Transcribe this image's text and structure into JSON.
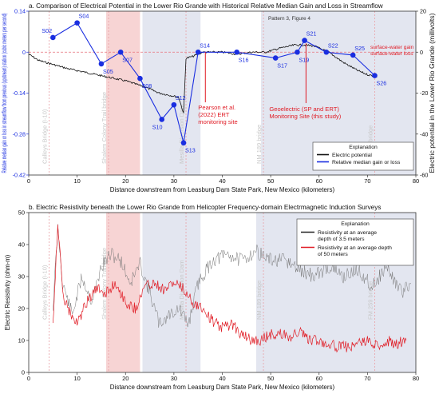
{
  "chart_data": [
    {
      "type": "line",
      "title": "a. Comparison of Electrical Potential in the Lower Rio Grande with Historical Relative Median Gain and Loss in Streamflow",
      "xlabel": "Distance downstream from Leasburg Dam State Park, New Mexico (kilometers)",
      "ylabel_left": "Relative median gain  or loss in streamflow from previous (upstream) station (cubic meters per second)",
      "ylabel_right": "Electric potential in the Lower Rio Grande (millivolts)",
      "xlim": [
        0,
        80
      ],
      "ylim": [
        -0.42,
        0.14
      ],
      "ylim_right": [
        -60,
        20
      ],
      "x_ticks": [
        0,
        10,
        20,
        30,
        40,
        50,
        60,
        70,
        80
      ],
      "y_ticks": [
        0.14,
        0,
        -0.14,
        -0.28,
        -0.42
      ],
      "y_tick_labels": [
        "0.14",
        "0",
        "-0.14",
        "-0.28",
        "-0.42"
      ],
      "y_ticks_right": [
        20,
        0,
        -20,
        -40,
        -60
      ],
      "shaded_bands": [
        {
          "from": 16,
          "to": 23,
          "color": "#f7d4d4"
        },
        {
          "from": 23.5,
          "to": 35.5,
          "color": "#e3e6f0"
        },
        {
          "from": 48,
          "to": 80,
          "color": "#e3e6f0"
        }
      ],
      "vertical_markers": [
        {
          "x": 4.2,
          "label": "Calleys Bridge (I-10)"
        },
        {
          "x": 16.5,
          "label": "Shalem Colony Trail bridge"
        },
        {
          "x": 32.5,
          "label": "Mesilla Diversion Dam"
        },
        {
          "x": 48.5,
          "label": "NM 189 bridge"
        },
        {
          "x": 71.5,
          "label": "FM 259 bridge"
        }
      ],
      "zero_line_color": "#e8707a",
      "series": [
        {
          "name": "Relative median gain or loss",
          "color": "#1a2ee0",
          "points": [
            {
              "x": 5,
              "y": 0.05,
              "label": "S02"
            },
            {
              "x": 10,
              "y": 0.1,
              "label": "S04"
            },
            {
              "x": 15,
              "y": -0.04,
              "label": "S05"
            },
            {
              "x": 19,
              "y": 0.0,
              "label": "S07"
            },
            {
              "x": 23,
              "y": -0.09,
              "label": "S08"
            },
            {
              "x": 27.5,
              "y": -0.23,
              "label": "S10"
            },
            {
              "x": 30,
              "y": -0.18,
              "label": "S12"
            },
            {
              "x": 32,
              "y": -0.31,
              "label": "S13"
            },
            {
              "x": 35,
              "y": 0.0,
              "label": "S14"
            },
            {
              "x": 43,
              "y": 0.0,
              "label": "S16"
            },
            {
              "x": 51,
              "y": -0.02,
              "label": "S17"
            },
            {
              "x": 55.5,
              "y": 0.0,
              "label": "S19"
            },
            {
              "x": 57,
              "y": 0.04,
              "label": "S21"
            },
            {
              "x": 61.5,
              "y": 0.0,
              "label": "S22"
            },
            {
              "x": 67,
              "y": -0.01,
              "label": "S25"
            },
            {
              "x": 71.5,
              "y": -0.08,
              "label": "S26"
            }
          ]
        },
        {
          "name": "Electric potential",
          "color": "#111111",
          "axis": "right",
          "points": [
            {
              "x": 0,
              "y": -1
            },
            {
              "x": 2,
              "y": -4
            },
            {
              "x": 5,
              "y": -6
            },
            {
              "x": 8,
              "y": -8
            },
            {
              "x": 12,
              "y": -10
            },
            {
              "x": 16,
              "y": -12
            },
            {
              "x": 20,
              "y": -14
            },
            {
              "x": 24,
              "y": -17
            },
            {
              "x": 27,
              "y": -20
            },
            {
              "x": 29,
              "y": -21
            },
            {
              "x": 31,
              "y": -22
            },
            {
              "x": 32,
              "y": -30
            },
            {
              "x": 32.5,
              "y": -3
            },
            {
              "x": 34,
              "y": -2
            },
            {
              "x": 36,
              "y": 0
            },
            {
              "x": 40,
              "y": 0
            },
            {
              "x": 43,
              "y": -1
            },
            {
              "x": 46,
              "y": 0
            },
            {
              "x": 49,
              "y": 0
            },
            {
              "x": 52,
              "y": 2
            },
            {
              "x": 55,
              "y": 3.5
            },
            {
              "x": 57,
              "y": 3.5
            },
            {
              "x": 59,
              "y": 3
            },
            {
              "x": 62,
              "y": 0
            },
            {
              "x": 65,
              "y": -5
            },
            {
              "x": 68,
              "y": -9
            },
            {
              "x": 70,
              "y": -11
            },
            {
              "x": 72,
              "y": -12
            }
          ]
        }
      ],
      "legend": {
        "title": "Explanation",
        "entries": [
          {
            "label": "Electric potential",
            "color": "#111111"
          },
          {
            "label": "Relative median gain or loss",
            "color": "#1a2ee0"
          }
        ],
        "placement": "bottom-right"
      },
      "annotations": [
        {
          "text": "Pearson et al. (2022) ERT monitoring site",
          "lines": [
            "Pearson et al.",
            "(2022) ERT",
            "monitoring site"
          ],
          "x": 36.5,
          "color": "#e01b24"
        },
        {
          "text": "Geoelectric (SP and ERT) Monitoring Site (this study)",
          "lines": [
            "Geoelectric (SP and ERT)",
            "Monitoring Site (this study)"
          ],
          "x": 54,
          "color": "#e01b24"
        },
        {
          "text": "surface-water gain",
          "color": "#e01b24"
        },
        {
          "text": "surface-water loss",
          "color": "#e01b24"
        },
        {
          "text": "Pattern 3, Figure 4",
          "color": "#333333"
        }
      ]
    },
    {
      "type": "line",
      "title": "b. Electric Resistivity beneath the Lower Rio Grande from Helicopter Frequency-domain Electrmagnetic Induction Surveys",
      "xlabel": "Distance downstream from Leasburg Dam State Park, New Mexico (kilometers)",
      "ylabel": "Electric Resistivity (ohm-m)",
      "xlim": [
        0,
        80
      ],
      "ylim": [
        0,
        50
      ],
      "x_ticks": [
        0,
        10,
        20,
        30,
        40,
        50,
        60,
        70,
        80
      ],
      "y_ticks": [
        0,
        10,
        20,
        30,
        40,
        50
      ],
      "shaded_bands": [
        {
          "from": 16,
          "to": 23,
          "color": "#f7d4d4"
        },
        {
          "from": 23.5,
          "to": 35.5,
          "color": "#e3e6f0"
        },
        {
          "from": 47,
          "to": 80,
          "color": "#e3e6f0"
        }
      ],
      "vertical_markers": [
        {
          "x": 4.2,
          "label": "Calleys Bridge (I-10)"
        },
        {
          "x": 16.5,
          "label": "Shalem Colony Trail bridge"
        },
        {
          "x": 32.5,
          "label": "Mesilla Diversion Dam"
        },
        {
          "x": 48.5,
          "label": "NM 189 bridge"
        },
        {
          "x": 71.5,
          "label": "FM 259 bridge"
        }
      ],
      "series": [
        {
          "name": "Resistivity at an average depth of 3.5 meters",
          "color": "#222222",
          "points": [
            {
              "x": 5,
              "y": 20
            },
            {
              "x": 6,
              "y": 45
            },
            {
              "x": 7,
              "y": 28
            },
            {
              "x": 9,
              "y": 18
            },
            {
              "x": 11,
              "y": 30
            },
            {
              "x": 13,
              "y": 22
            },
            {
              "x": 15,
              "y": 33
            },
            {
              "x": 17,
              "y": 37
            },
            {
              "x": 19,
              "y": 35
            },
            {
              "x": 21,
              "y": 28
            },
            {
              "x": 23,
              "y": 34
            },
            {
              "x": 25,
              "y": 25
            },
            {
              "x": 27,
              "y": 15
            },
            {
              "x": 29,
              "y": 18
            },
            {
              "x": 31,
              "y": 20
            },
            {
              "x": 33,
              "y": 15
            },
            {
              "x": 35,
              "y": 28
            },
            {
              "x": 38,
              "y": 35
            },
            {
              "x": 41,
              "y": 37
            },
            {
              "x": 44,
              "y": 35
            },
            {
              "x": 47,
              "y": 38
            },
            {
              "x": 50,
              "y": 35
            },
            {
              "x": 53,
              "y": 35
            },
            {
              "x": 56,
              "y": 32
            },
            {
              "x": 59,
              "y": 30
            },
            {
              "x": 62,
              "y": 33
            },
            {
              "x": 65,
              "y": 30
            },
            {
              "x": 68,
              "y": 32
            },
            {
              "x": 71,
              "y": 27
            },
            {
              "x": 74,
              "y": 33
            },
            {
              "x": 77,
              "y": 25
            },
            {
              "x": 79,
              "y": 28
            }
          ]
        },
        {
          "name": "Resistivity at an average depth of 50 meters",
          "color": "#e01b24",
          "points": [
            {
              "x": 5,
              "y": 15
            },
            {
              "x": 6,
              "y": 47
            },
            {
              "x": 7,
              "y": 25
            },
            {
              "x": 8,
              "y": 20
            },
            {
              "x": 10,
              "y": 15
            },
            {
              "x": 12,
              "y": 22
            },
            {
              "x": 14,
              "y": 26
            },
            {
              "x": 16,
              "y": 25
            },
            {
              "x": 18,
              "y": 28
            },
            {
              "x": 20,
              "y": 22
            },
            {
              "x": 22,
              "y": 20
            },
            {
              "x": 24,
              "y": 27
            },
            {
              "x": 26,
              "y": 28
            },
            {
              "x": 28,
              "y": 26
            },
            {
              "x": 30,
              "y": 28
            },
            {
              "x": 32,
              "y": 26
            },
            {
              "x": 34,
              "y": 22
            },
            {
              "x": 36,
              "y": 20
            },
            {
              "x": 38,
              "y": 16
            },
            {
              "x": 40,
              "y": 14
            },
            {
              "x": 42,
              "y": 15
            },
            {
              "x": 44,
              "y": 12
            },
            {
              "x": 46,
              "y": 10
            },
            {
              "x": 48,
              "y": 10
            },
            {
              "x": 50,
              "y": 12
            },
            {
              "x": 52,
              "y": 12
            },
            {
              "x": 54,
              "y": 11
            },
            {
              "x": 56,
              "y": 13
            },
            {
              "x": 58,
              "y": 10
            },
            {
              "x": 60,
              "y": 10
            },
            {
              "x": 62,
              "y": 9
            },
            {
              "x": 64,
              "y": 8
            },
            {
              "x": 66,
              "y": 8
            },
            {
              "x": 68,
              "y": 9
            },
            {
              "x": 70,
              "y": 10
            },
            {
              "x": 72,
              "y": 8
            },
            {
              "x": 74,
              "y": 10
            },
            {
              "x": 76,
              "y": 9
            },
            {
              "x": 78,
              "y": 10
            }
          ]
        }
      ],
      "legend": {
        "title": "Explanation",
        "entries": [
          {
            "label": "Resistivity at an average depth of 3.5 meters",
            "lines": [
              "Resistivity at an average",
              "depth of 3.5 meters"
            ],
            "color": "#222222"
          },
          {
            "label": "Resistivity at an average depth of 50 meters",
            "lines": [
              "Resistivity at an average depth",
              "of 50 meters"
            ],
            "color": "#e01b24"
          }
        ],
        "placement": "top-right"
      }
    }
  ]
}
